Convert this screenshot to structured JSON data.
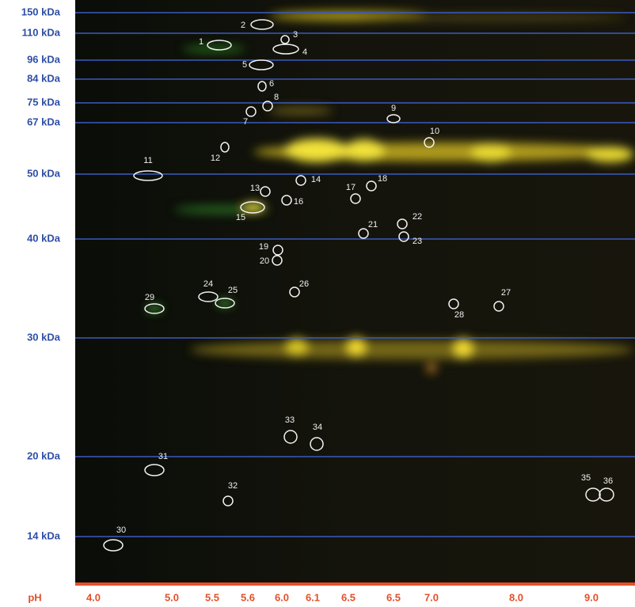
{
  "mw_markers": [
    "150 kDa",
    "110 kDa",
    "96 kDa",
    "84 kDa",
    "75 kDa",
    "67 kDa",
    "50 kDa",
    "40 kDa",
    "30 kDa",
    "20 kDa",
    "14 kDa"
  ],
  "ph_axis": {
    "label": "pH",
    "ticks": [
      "4.0",
      "5.0",
      "5.5",
      "5.6",
      "6.0",
      "6.1",
      "6.5",
      "6.5",
      "7.0",
      "8.0",
      "9.0"
    ]
  },
  "spots": [
    "1",
    "2",
    "3",
    "4",
    "5",
    "6",
    "7",
    "8",
    "9",
    "10",
    "11",
    "12",
    "13",
    "14",
    "15",
    "16",
    "17",
    "18",
    "19",
    "20",
    "21",
    "22",
    "23",
    "24",
    "25",
    "26",
    "27",
    "28",
    "29",
    "30",
    "31",
    "32",
    "33",
    "34",
    "35",
    "36"
  ]
}
